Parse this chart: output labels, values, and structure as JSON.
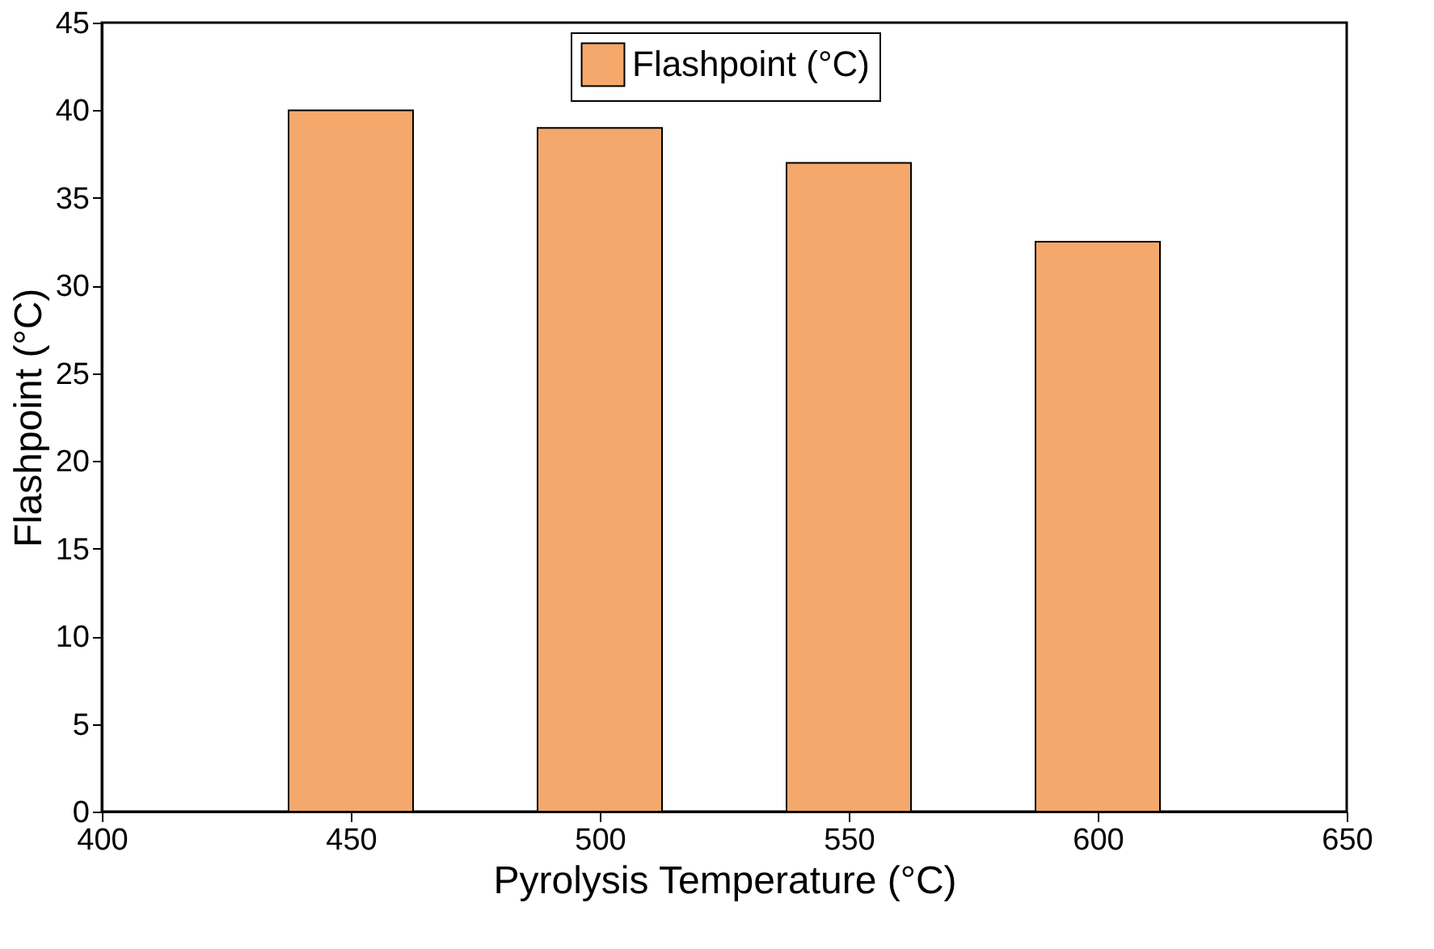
{
  "chart_data": {
    "type": "bar",
    "xlabel": "Pyrolysis Temperature (°C)",
    "ylabel": "Flashpoint (°C)",
    "x": [
      450,
      500,
      550,
      600
    ],
    "series": [
      {
        "name": "Flashpoint (°C)",
        "color": "#f5a86b",
        "values": [
          40,
          39,
          37,
          32.5
        ]
      }
    ],
    "xlim": [
      400,
      650
    ],
    "xticks": [
      400,
      450,
      500,
      550,
      600,
      650
    ],
    "ylim": [
      0,
      45
    ],
    "yticks": [
      0,
      5,
      10,
      15,
      20,
      25,
      30,
      35,
      40,
      45
    ],
    "grid": false,
    "legend": "top"
  }
}
